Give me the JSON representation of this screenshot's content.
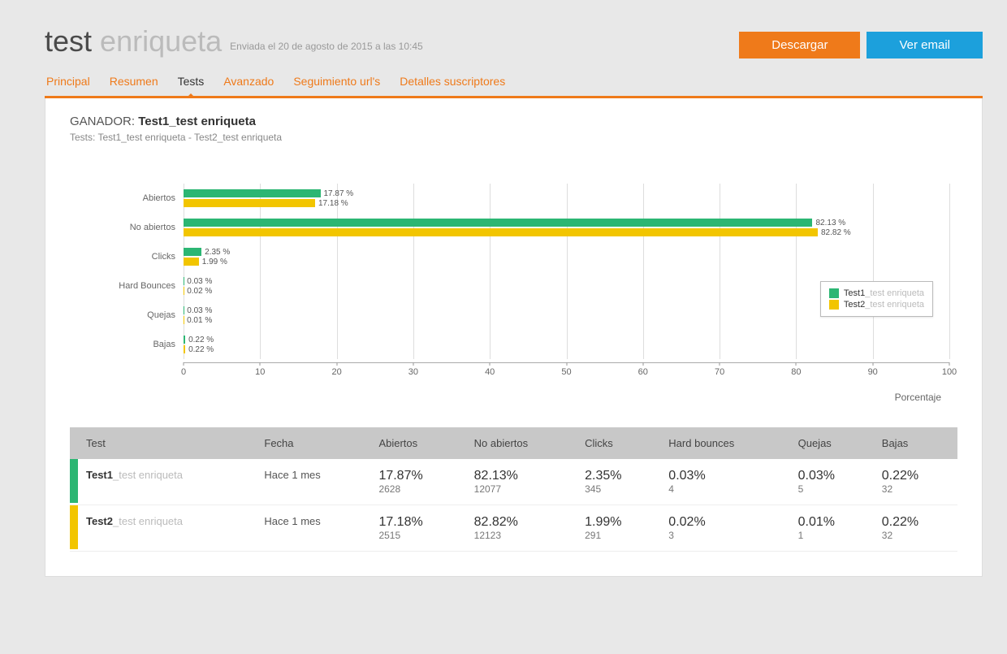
{
  "header": {
    "title_prefix": "test",
    "title_suffix": "enriqueta",
    "subtitle": "Enviada el 20 de agosto de 2015 a las 10:45",
    "download_label": "Descargar",
    "view_email_label": "Ver email"
  },
  "tabs": {
    "items": [
      "Principal",
      "Resumen",
      "Tests",
      "Avanzado",
      "Seguimiento url's",
      "Detalles suscriptores"
    ],
    "active_index": 2
  },
  "winner": {
    "label": "GANADOR:",
    "name": "Test1_test enriqueta",
    "tests_label": "Tests:",
    "tests_list": "Test1_test enriqueta - Test2_test enriqueta"
  },
  "chart": {
    "type": "grouped-horizontal-bar",
    "series_colors": [
      "#2cb673",
      "#f2c500"
    ],
    "xmin": 0,
    "xmax": 100,
    "xtick_step": 10,
    "grid_color": "#ddd",
    "axis_title": "Porcentaje",
    "categories": [
      {
        "label": "Abiertos",
        "values": [
          17.87,
          17.18
        ],
        "display": [
          "17.87 %",
          "17.18 %"
        ]
      },
      {
        "label": "No abiertos",
        "values": [
          82.13,
          82.82
        ],
        "display": [
          "82.13 %",
          "82.82 %"
        ]
      },
      {
        "label": "Clicks",
        "values": [
          2.35,
          1.99
        ],
        "display": [
          "2.35 %",
          "1.99 %"
        ]
      },
      {
        "label": "Hard Bounces",
        "values": [
          0.03,
          0.02
        ],
        "display": [
          "0.03 %",
          "0.02 %"
        ]
      },
      {
        "label": "Quejas",
        "values": [
          0.03,
          0.01
        ],
        "display": [
          "0.03 %",
          "0.01 %"
        ]
      },
      {
        "label": "Bajas",
        "values": [
          0.22,
          0.22
        ],
        "display": [
          "0.22 %",
          "0.22 %"
        ]
      }
    ],
    "legend": [
      {
        "prefix": "Test1",
        "suffix": "_test enriqueta"
      },
      {
        "prefix": "Test2",
        "suffix": "_test enriqueta"
      }
    ]
  },
  "table": {
    "columns": [
      "Test",
      "Fecha",
      "Abiertos",
      "No abiertos",
      "Clicks",
      "Hard bounces",
      "Quejas",
      "Bajas"
    ],
    "rows": [
      {
        "marker_color": "#2cb673",
        "name_prefix": "Test1",
        "name_suffix": "_test enriqueta",
        "fecha": "Hace 1 mes",
        "cells": [
          {
            "pct": "17.87%",
            "cnt": "2628"
          },
          {
            "pct": "82.13%",
            "cnt": "12077"
          },
          {
            "pct": "2.35%",
            "cnt": "345"
          },
          {
            "pct": "0.03%",
            "cnt": "4"
          },
          {
            "pct": "0.03%",
            "cnt": "5"
          },
          {
            "pct": "0.22%",
            "cnt": "32"
          }
        ]
      },
      {
        "marker_color": "#f2c500",
        "name_prefix": "Test2",
        "name_suffix": "_test enriqueta",
        "fecha": "Hace 1 mes",
        "cells": [
          {
            "pct": "17.18%",
            "cnt": "2515"
          },
          {
            "pct": "82.82%",
            "cnt": "12123"
          },
          {
            "pct": "1.99%",
            "cnt": "291"
          },
          {
            "pct": "0.02%",
            "cnt": "3"
          },
          {
            "pct": "0.01%",
            "cnt": "1"
          },
          {
            "pct": "0.22%",
            "cnt": "32"
          }
        ]
      }
    ]
  }
}
